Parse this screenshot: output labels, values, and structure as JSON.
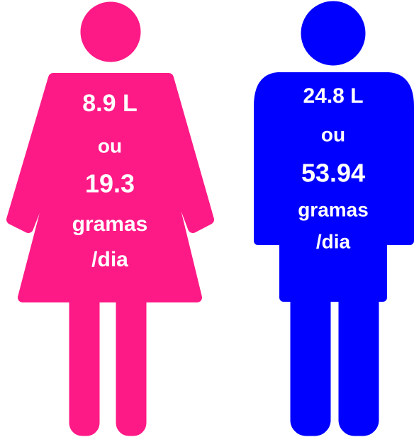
{
  "female": {
    "lines": [
      "8.9 L",
      "ou",
      "19.3",
      "gramas",
      "/dia"
    ]
  },
  "male": {
    "lines": [
      "24.8 L",
      "ou",
      "53.94",
      "gramas",
      "/dia"
    ]
  }
}
